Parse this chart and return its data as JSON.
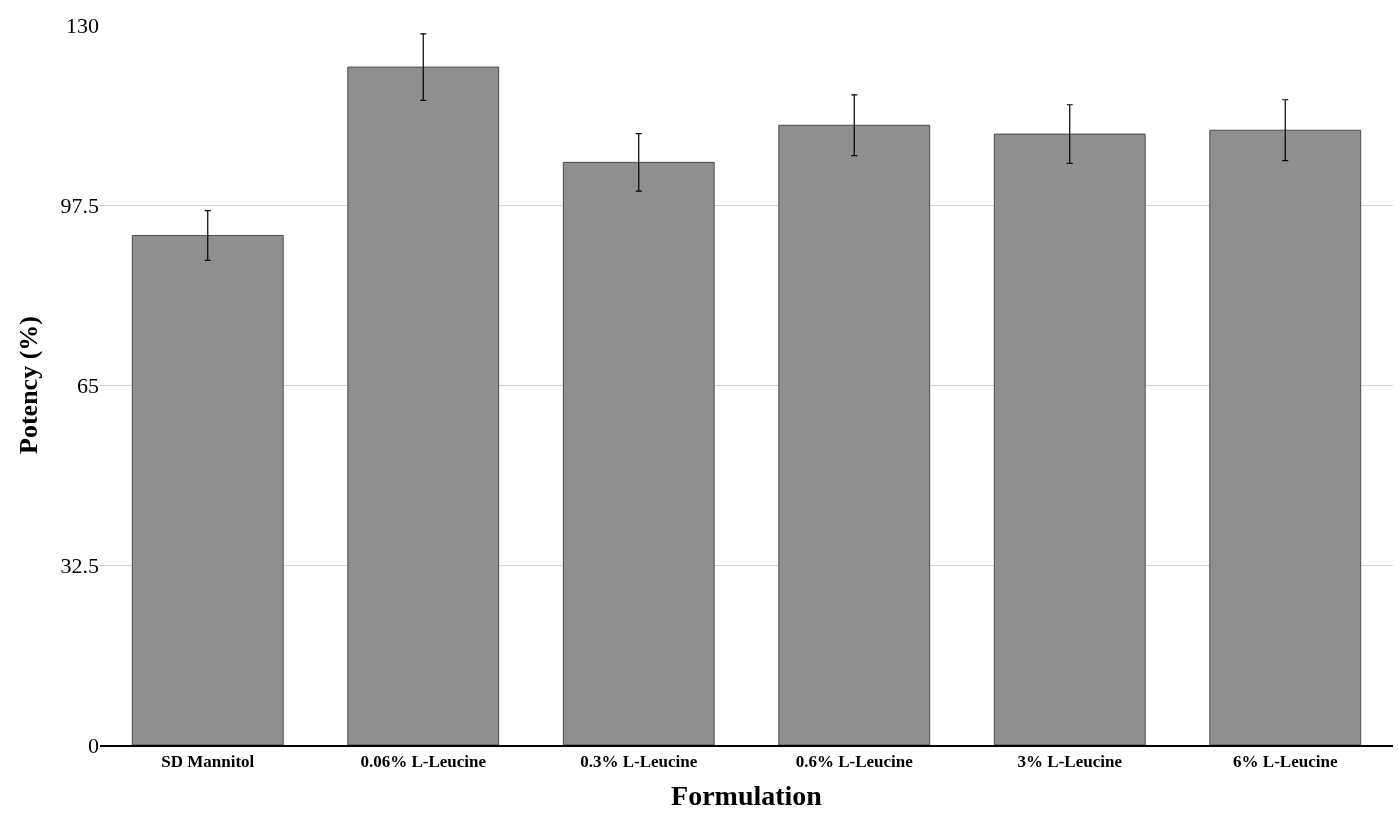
{
  "chart_data": {
    "type": "bar",
    "xlabel": "Formulation",
    "ylabel": "Potency (%)",
    "categories": [
      "SD Mannitol",
      "0.06% L-Leucine",
      "0.3% L-Leucine",
      "0.6% L-Leucine",
      "3% L-Leucine",
      "6% L-Leucine"
    ],
    "values": [
      92.0,
      122.4,
      105.2,
      111.9,
      110.3,
      111.0
    ],
    "errors": [
      4.5,
      6.0,
      5.2,
      5.5,
      5.3,
      5.5
    ],
    "color": "#8f8f8f",
    "ylim": [
      0,
      130
    ],
    "yticks": [
      0,
      32.5,
      65,
      97.5,
      130
    ],
    "grid": "y",
    "legend": false
  }
}
